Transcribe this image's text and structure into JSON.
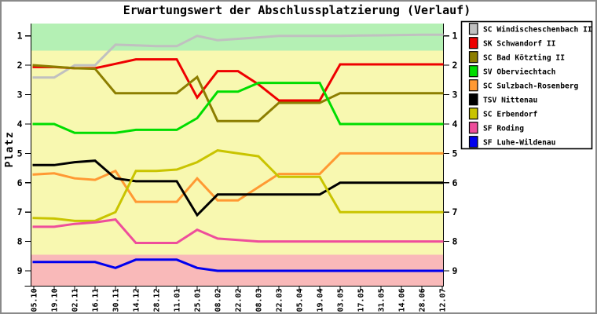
{
  "window": {
    "background": "#ffffff",
    "border_color": "#8a8a8a"
  },
  "chart_data": {
    "type": "line",
    "title": "Erwartungswert der Abschlussplatzierung (Verlauf)",
    "ylabel": "Platz",
    "xlabel": "",
    "ylim": [
      0.58,
      9.52
    ],
    "y_axis_direction": "1 at top, 9 at bottom",
    "grid": "off",
    "legend_position": "outside-top-right-boxed",
    "y_ticks": [
      "1",
      "2",
      "3",
      "4",
      "5",
      "6",
      "7",
      "8",
      "9"
    ],
    "x_tick_labels": [
      "05.10",
      "19.10",
      "02.11",
      "16.11",
      "30.11",
      "14.12",
      "28.12",
      "11.01",
      "25.01",
      "08.02",
      "22.02",
      "08.03",
      "22.03",
      "05.04",
      "19.04",
      "03.05",
      "17.05",
      "31.05",
      "14.06",
      "28.06",
      "12.07"
    ],
    "zones": [
      {
        "name": "zone-top",
        "from": 0.58,
        "to": 1.5,
        "color": "#b4f0b4"
      },
      {
        "name": "zone-middle",
        "from": 1.5,
        "to": 8.45,
        "color": "#f8f8b0"
      },
      {
        "name": "zone-bottom",
        "from": 8.45,
        "to": 9.52,
        "color": "#f9b9b9"
      }
    ],
    "series": [
      {
        "name": "SC Windischeschenbach II",
        "color": "#c0c0c0",
        "values": [
          2.42,
          2.42,
          2.0,
          2.0,
          1.3,
          1.32,
          1.35,
          1.35,
          1.0,
          1.15,
          1.1,
          1.05,
          1.0,
          1.0,
          1.0,
          1.0,
          0.99,
          0.98,
          0.97,
          0.96,
          0.96
        ]
      },
      {
        "name": "SK Schwandorf II",
        "color": "#ee0000",
        "values": [
          2.06,
          2.06,
          2.1,
          2.1,
          1.95,
          1.8,
          1.8,
          1.8,
          3.1,
          2.2,
          2.2,
          2.65,
          3.2,
          3.2,
          3.2,
          1.97,
          1.97,
          1.97,
          1.97,
          1.97,
          1.97
        ]
      },
      {
        "name": "SC Bad Kötzting II",
        "color": "#8c7e00",
        "values": [
          2.0,
          2.05,
          2.1,
          2.12,
          2.95,
          2.95,
          2.95,
          2.95,
          2.4,
          3.9,
          3.9,
          3.9,
          3.28,
          3.28,
          3.28,
          2.95,
          2.95,
          2.95,
          2.95,
          2.95,
          2.95
        ]
      },
      {
        "name": "SV Oberviechtach",
        "color": "#00dd00",
        "values": [
          4.0,
          4.0,
          4.3,
          4.3,
          4.3,
          4.2,
          4.2,
          4.2,
          3.8,
          2.9,
          2.9,
          2.6,
          2.6,
          2.6,
          2.6,
          4.0,
          4.0,
          4.0,
          4.0,
          4.0,
          4.0
        ]
      },
      {
        "name": "SC Sulzbach-Rosenberg",
        "color": "#ff9933",
        "values": [
          5.72,
          5.68,
          5.85,
          5.9,
          5.6,
          6.65,
          6.65,
          6.65,
          5.85,
          6.6,
          6.6,
          6.15,
          5.7,
          5.7,
          5.7,
          5.0,
          5.0,
          5.0,
          5.0,
          5.0,
          5.0
        ]
      },
      {
        "name": "TSV Nittenau",
        "color": "#000000",
        "values": [
          5.4,
          5.4,
          5.3,
          5.25,
          5.85,
          5.95,
          5.95,
          5.95,
          7.1,
          6.4,
          6.4,
          6.4,
          6.4,
          6.4,
          6.4,
          6.0,
          6.0,
          6.0,
          6.0,
          6.0,
          6.0
        ]
      },
      {
        "name": "SC Erbendorf",
        "color": "#c9c400",
        "values": [
          7.2,
          7.22,
          7.3,
          7.3,
          7.0,
          5.6,
          5.6,
          5.55,
          5.3,
          4.9,
          5.0,
          5.1,
          5.8,
          5.8,
          5.8,
          7.0,
          7.0,
          7.0,
          7.0,
          7.0,
          7.0
        ]
      },
      {
        "name": "SF Roding",
        "color": "#ee4e9b",
        "values": [
          7.5,
          7.5,
          7.4,
          7.35,
          7.25,
          8.05,
          8.05,
          8.05,
          7.6,
          7.9,
          7.95,
          8.0,
          8.0,
          8.0,
          8.0,
          8.0,
          8.0,
          8.0,
          8.0,
          8.0,
          8.0
        ]
      },
      {
        "name": "SF Luhe-Wildenau",
        "color": "#0000ee",
        "values": [
          8.7,
          8.7,
          8.7,
          8.7,
          8.9,
          8.62,
          8.62,
          8.62,
          8.9,
          9.0,
          9.0,
          9.0,
          9.0,
          9.0,
          9.0,
          9.0,
          9.0,
          9.0,
          9.0,
          9.0,
          9.0
        ]
      }
    ]
  }
}
